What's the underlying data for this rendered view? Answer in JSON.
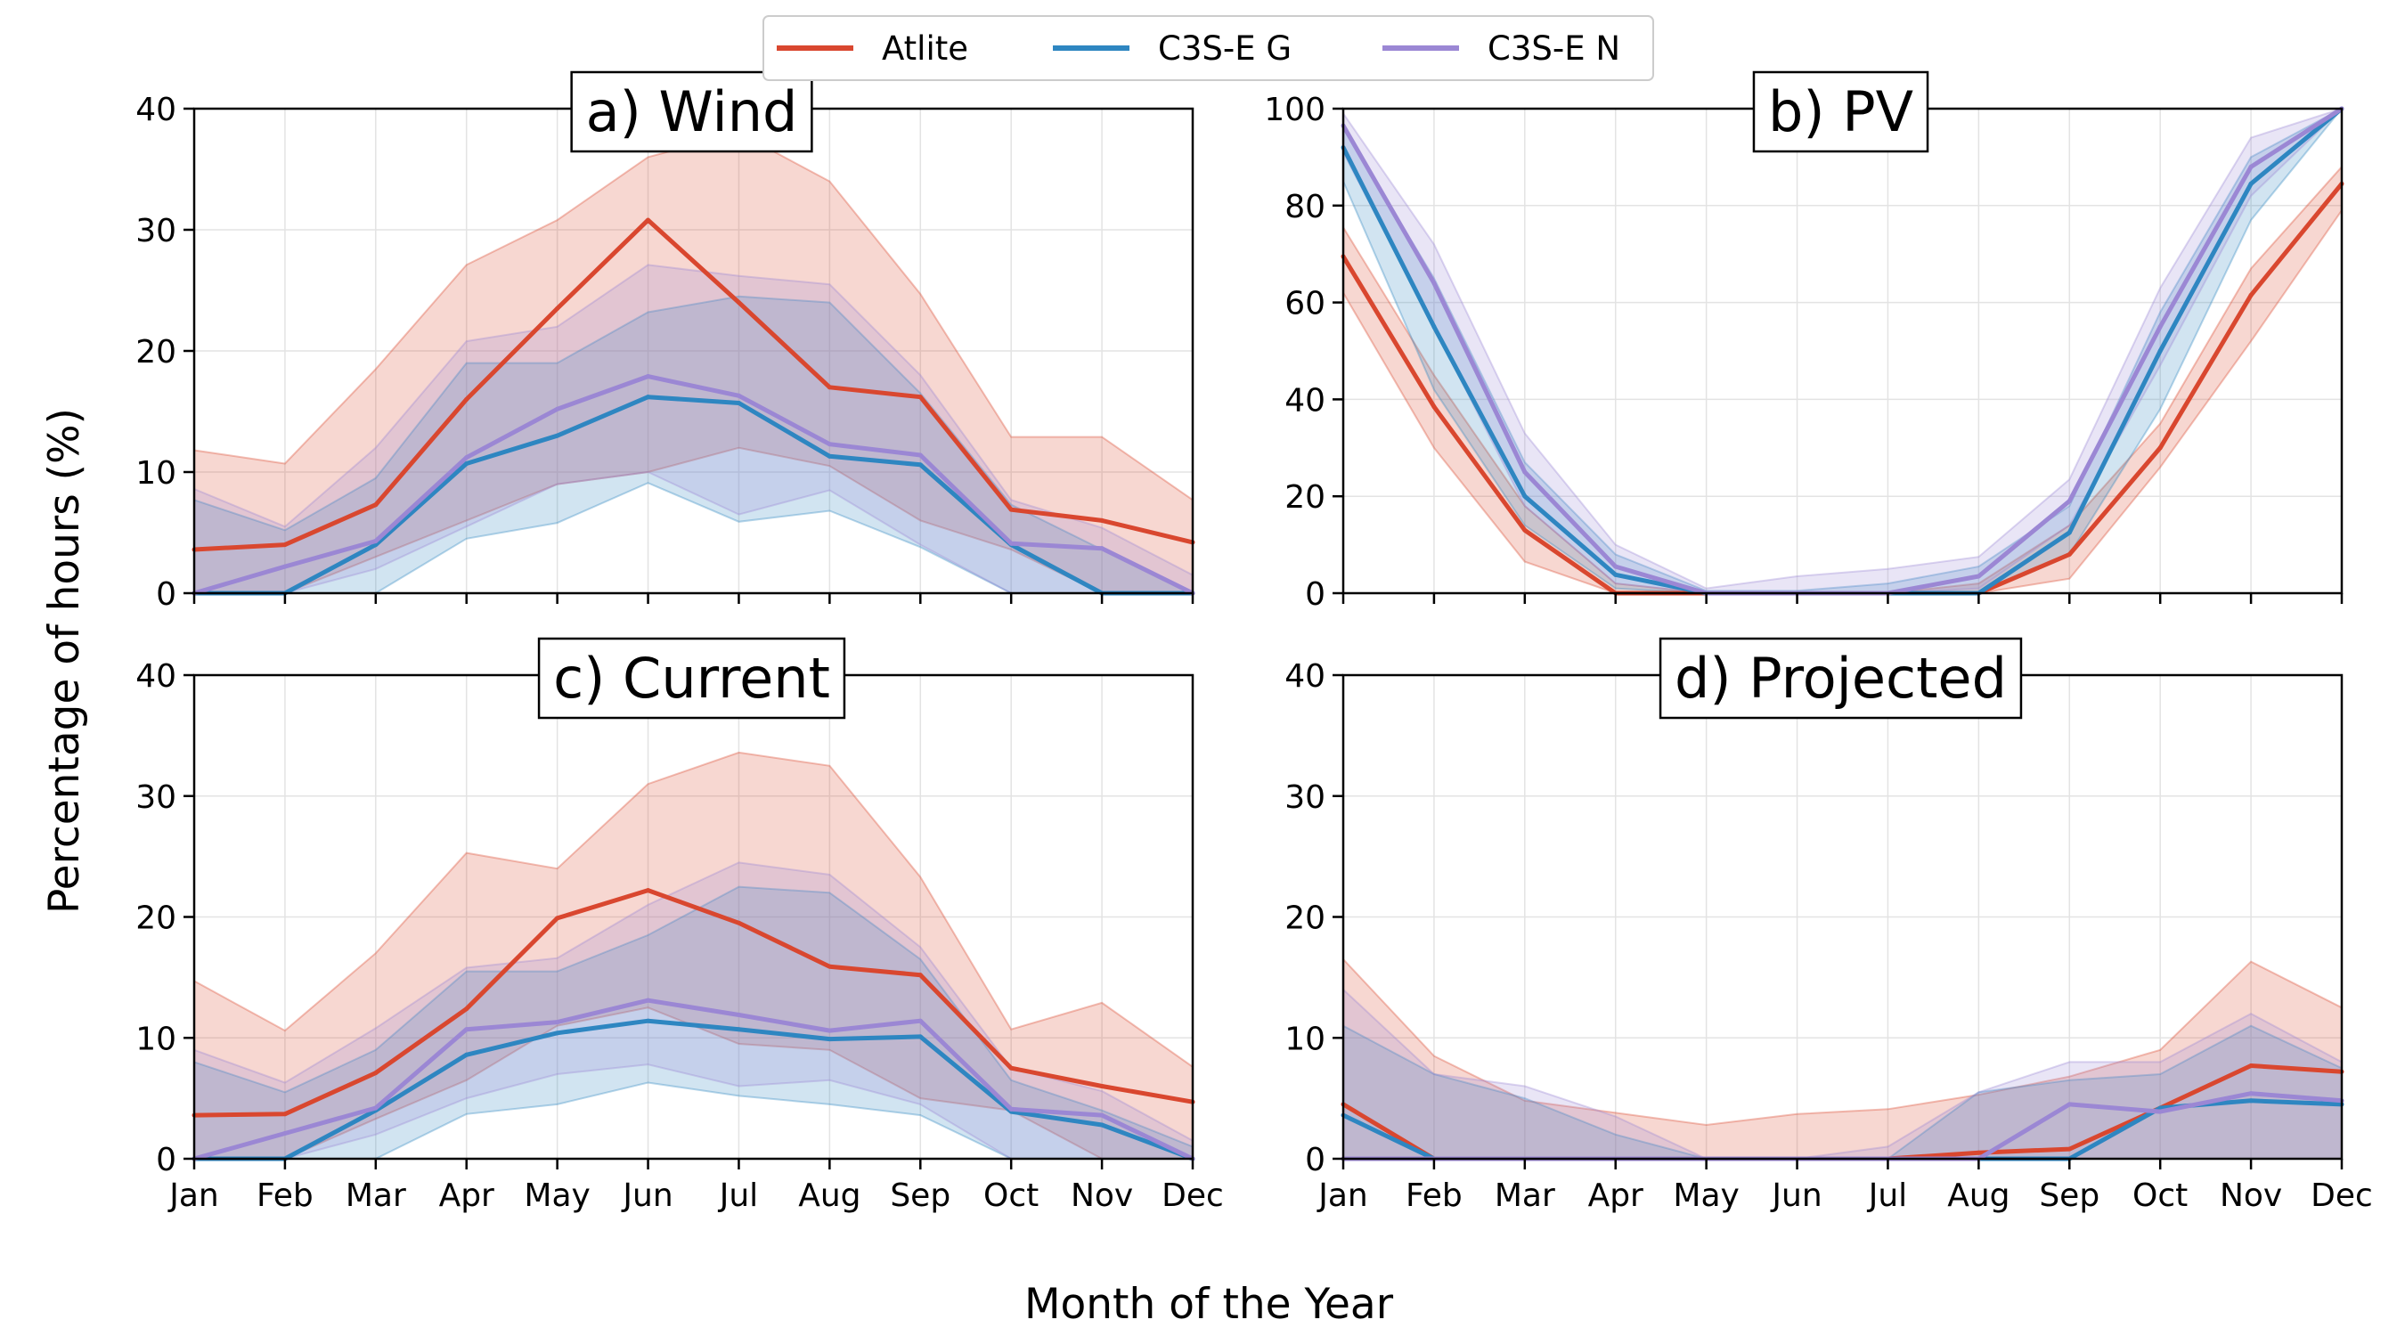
{
  "figure": {
    "xlabel": "Month of the Year",
    "ylabel": "Percentage of hours (%)"
  },
  "legend": {
    "placement": "top-center",
    "items": [
      {
        "label": "Atlite",
        "color": "#d9472f"
      },
      {
        "label": "C3S-E G",
        "color": "#2e86c1"
      },
      {
        "label": "C3S-E N",
        "color": "#9b87d4"
      }
    ]
  },
  "chart_data": [
    {
      "type": "line",
      "title": "a) Wind",
      "categories": [
        "Jan",
        "Feb",
        "Mar",
        "Apr",
        "May",
        "Jun",
        "Jul",
        "Aug",
        "Sep",
        "Oct",
        "Nov",
        "Dec"
      ],
      "ylim": [
        0,
        40
      ],
      "yticks": [
        0,
        10,
        20,
        30,
        40
      ],
      "grid": true,
      "series": [
        {
          "name": "Atlite",
          "color": "#d9472f",
          "values": [
            3.6,
            4.0,
            7.3,
            16.0,
            23.5,
            30.8,
            24.0,
            17.0,
            16.2,
            6.9,
            6.0,
            4.2
          ],
          "upper": [
            11.8,
            10.7,
            18.5,
            27.1,
            30.8,
            36.0,
            38.0,
            34.0,
            24.7,
            12.9,
            12.9,
            7.7
          ],
          "lower": [
            0,
            0,
            3.0,
            6.0,
            9.0,
            10.0,
            12.0,
            10.5,
            6.0,
            3.6,
            0,
            0
          ]
        },
        {
          "name": "C3S-E G",
          "color": "#2e86c1",
          "values": [
            0,
            0,
            4.0,
            10.7,
            13.0,
            16.2,
            15.7,
            11.3,
            10.6,
            4.0,
            0,
            0
          ],
          "upper": [
            7.7,
            5.2,
            9.5,
            19.0,
            19.0,
            23.2,
            24.5,
            24.0,
            16.5,
            7.3,
            3.6,
            0
          ],
          "lower": [
            0,
            0,
            0,
            4.5,
            5.8,
            9.1,
            5.9,
            6.8,
            3.8,
            0,
            0,
            0
          ]
        },
        {
          "name": "C3S-E N",
          "color": "#9b87d4",
          "values": [
            0,
            2.2,
            4.3,
            11.2,
            15.2,
            17.9,
            16.3,
            12.3,
            11.4,
            4.1,
            3.7,
            0
          ],
          "upper": [
            8.6,
            5.5,
            12.0,
            20.8,
            22.0,
            27.1,
            26.2,
            25.5,
            18.0,
            7.7,
            5.4,
            1.5
          ],
          "lower": [
            0,
            0,
            2.0,
            5.5,
            9.0,
            10.0,
            6.5,
            8.5,
            4.0,
            0,
            0,
            0
          ]
        }
      ]
    },
    {
      "type": "line",
      "title": "b) PV",
      "categories": [
        "Jan",
        "Feb",
        "Mar",
        "Apr",
        "May",
        "Jun",
        "Jul",
        "Aug",
        "Sep",
        "Oct",
        "Nov",
        "Dec"
      ],
      "ylim": [
        0,
        100
      ],
      "yticks": [
        0,
        20,
        40,
        60,
        80,
        100
      ],
      "grid": true,
      "series": [
        {
          "name": "Atlite",
          "color": "#d9472f",
          "values": [
            69.5,
            38.5,
            13.0,
            0,
            0,
            0,
            0,
            0,
            8.0,
            30.0,
            61.5,
            84.5
          ],
          "upper": [
            75.5,
            45.0,
            18.0,
            2.0,
            0,
            0,
            0,
            2.0,
            14.0,
            35.0,
            67.0,
            88.0
          ],
          "lower": [
            62.0,
            30.0,
            6.5,
            0,
            0,
            0,
            0,
            0,
            3.0,
            26.0,
            52.0,
            79.0
          ]
        },
        {
          "name": "C3S-E G",
          "color": "#2e86c1",
          "values": [
            92.0,
            55.0,
            20.0,
            3.8,
            0,
            0,
            0,
            0,
            12.5,
            50.0,
            84.5,
            100.0
          ],
          "upper": [
            96.0,
            65.0,
            27.0,
            8.0,
            0.5,
            0.5,
            2.0,
            5.5,
            18.0,
            58.0,
            90.0,
            100.0
          ],
          "lower": [
            85.0,
            42.0,
            14.0,
            1.0,
            0,
            0,
            0,
            0,
            8.0,
            38.0,
            77.0,
            100.0
          ]
        },
        {
          "name": "C3S-E N",
          "color": "#9b87d4",
          "values": [
            96.5,
            64.0,
            25.0,
            5.5,
            0,
            0,
            0,
            3.5,
            19.0,
            55.0,
            88.0,
            100.0
          ],
          "upper": [
            99.0,
            72.0,
            33.0,
            10.0,
            1.0,
            3.5,
            5.0,
            7.5,
            23.5,
            63.0,
            94.0,
            100.0
          ],
          "lower": [
            91.0,
            55.0,
            18.0,
            2.0,
            0,
            0,
            0,
            1.0,
            14.0,
            47.0,
            82.0,
            100.0
          ]
        }
      ]
    },
    {
      "type": "line",
      "title": "c) Current",
      "categories": [
        "Jan",
        "Feb",
        "Mar",
        "Apr",
        "May",
        "Jun",
        "Jul",
        "Aug",
        "Sep",
        "Oct",
        "Nov",
        "Dec"
      ],
      "ylim": [
        0,
        40
      ],
      "yticks": [
        0,
        10,
        20,
        30,
        40
      ],
      "grid": true,
      "series": [
        {
          "name": "Atlite",
          "color": "#d9472f",
          "values": [
            3.6,
            3.7,
            7.1,
            12.4,
            19.9,
            22.2,
            19.5,
            15.9,
            15.2,
            7.5,
            6.0,
            4.7
          ],
          "upper": [
            14.7,
            10.6,
            17.0,
            25.3,
            24.0,
            31.0,
            33.6,
            32.5,
            23.3,
            10.7,
            12.9,
            7.6
          ],
          "lower": [
            0,
            0,
            3.3,
            6.5,
            11.0,
            12.5,
            9.5,
            9.0,
            5.0,
            4.0,
            0,
            0
          ]
        },
        {
          "name": "C3S-E G",
          "color": "#2e86c1",
          "values": [
            0,
            0,
            4.0,
            8.6,
            10.4,
            11.4,
            10.7,
            9.9,
            10.1,
            3.9,
            2.8,
            0
          ],
          "upper": [
            8.0,
            5.5,
            9.0,
            15.5,
            15.5,
            18.5,
            22.5,
            22.0,
            16.5,
            6.5,
            4.0,
            1.0
          ],
          "lower": [
            0,
            0,
            0,
            3.7,
            4.5,
            6.3,
            5.2,
            4.5,
            3.6,
            0,
            0,
            0
          ]
        },
        {
          "name": "C3S-E N",
          "color": "#9b87d4",
          "values": [
            0,
            2.1,
            4.2,
            10.7,
            11.3,
            13.1,
            11.9,
            10.6,
            11.4,
            4.1,
            3.6,
            0
          ],
          "upper": [
            9.0,
            6.3,
            10.8,
            15.8,
            16.6,
            21.0,
            24.5,
            23.5,
            17.5,
            7.5,
            5.6,
            1.5
          ],
          "lower": [
            0,
            0,
            2.0,
            5.0,
            7.0,
            7.8,
            6.0,
            6.5,
            4.5,
            0,
            0,
            0
          ]
        }
      ]
    },
    {
      "type": "line",
      "title": "d) Projected",
      "categories": [
        "Jan",
        "Feb",
        "Mar",
        "Apr",
        "May",
        "Jun",
        "Jul",
        "Aug",
        "Sep",
        "Oct",
        "Nov",
        "Dec"
      ],
      "ylim": [
        0,
        40
      ],
      "yticks": [
        0,
        10,
        20,
        30,
        40
      ],
      "grid": true,
      "series": [
        {
          "name": "Atlite",
          "color": "#d9472f",
          "values": [
            4.5,
            0,
            0,
            0,
            0,
            0,
            0,
            0.5,
            0.8,
            4.2,
            7.7,
            7.2
          ],
          "upper": [
            16.5,
            8.5,
            4.8,
            3.8,
            2.8,
            3.7,
            4.1,
            5.3,
            6.8,
            9.0,
            16.3,
            12.5
          ],
          "lower": [
            0,
            0,
            0,
            0,
            0,
            0,
            0,
            0,
            0,
            0,
            0,
            0
          ]
        },
        {
          "name": "C3S-E G",
          "color": "#2e86c1",
          "values": [
            3.6,
            0,
            0,
            0,
            0,
            0,
            0,
            0,
            0,
            4.2,
            4.8,
            4.5
          ],
          "upper": [
            11.0,
            7.0,
            5.0,
            2.0,
            0,
            0,
            0,
            5.5,
            6.5,
            7.0,
            11.0,
            7.5
          ],
          "lower": [
            0,
            0,
            0,
            0,
            0,
            0,
            0,
            0,
            0,
            0,
            0,
            0
          ]
        },
        {
          "name": "C3S-E N",
          "color": "#9b87d4",
          "values": [
            0,
            0,
            0,
            0,
            0,
            0,
            0,
            0,
            4.5,
            3.9,
            5.4,
            4.8
          ],
          "upper": [
            14.0,
            7.0,
            6.0,
            3.5,
            0,
            0,
            1.0,
            5.5,
            8.0,
            8.0,
            12.0,
            8.0
          ],
          "lower": [
            0,
            0,
            0,
            0,
            0,
            0,
            0,
            0,
            0,
            0,
            0,
            0
          ]
        }
      ]
    }
  ]
}
